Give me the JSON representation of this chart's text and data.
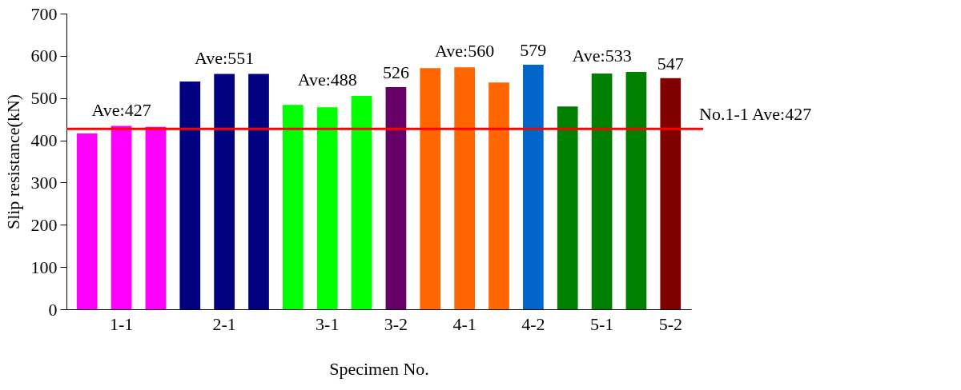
{
  "chart_data": {
    "type": "bar",
    "xlabel": "Specimen No.",
    "ylabel": "Slip resistance(kN)",
    "categories": [
      null,
      "1-1",
      null,
      null,
      "2-1",
      null,
      null,
      "3-1",
      null,
      "3-2",
      null,
      "4-1",
      null,
      "4-2",
      null,
      "5-1",
      null,
      "5-2"
    ],
    "values": [
      416,
      434,
      432,
      539,
      557,
      557,
      484,
      478,
      505,
      526,
      571,
      573,
      537,
      579,
      480,
      558,
      562,
      547
    ],
    "colors": [
      "#ff00ff",
      "#ff00ff",
      "#ff00ff",
      "#000080",
      "#000080",
      "#000080",
      "#00ff00",
      "#00ff00",
      "#00ff00",
      "#660066",
      "#ff6600",
      "#ff6600",
      "#ff6600",
      "#0066cc",
      "#008000",
      "#008000",
      "#008000",
      "#800000"
    ],
    "value_labels": [
      null,
      null,
      null,
      null,
      null,
      null,
      null,
      null,
      null,
      "526",
      null,
      null,
      null,
      "579",
      null,
      null,
      null,
      "547"
    ],
    "ylim": [
      0,
      700
    ],
    "yticks": [
      0,
      100,
      200,
      300,
      400,
      500,
      600,
      700
    ],
    "ref_lines": [
      {
        "axis": "y",
        "value": 427,
        "label": "No.1-1 Ave:427",
        "color": "#ff0000"
      }
    ],
    "annotations": [
      "Ave:427",
      "Ave:551",
      "Ave:488",
      "Ave:560",
      "Ave:533"
    ],
    "grid": false
  }
}
